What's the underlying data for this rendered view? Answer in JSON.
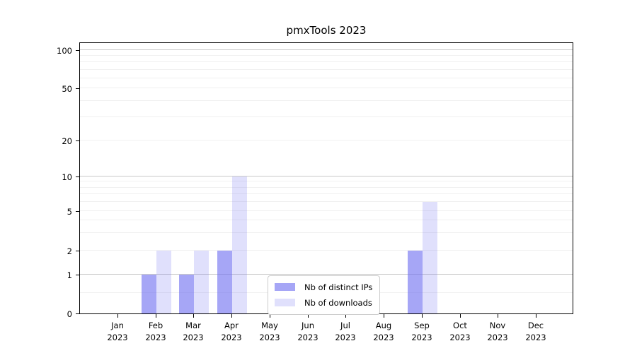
{
  "title": "pmxTools 2023",
  "colors": {
    "bar_base": "#7070f0",
    "distinct_ips_fill": "rgba(112,112,240,0.62)",
    "downloads_fill": "rgba(112,112,240,0.22)",
    "major_grid": "#c9c9c9",
    "minor_grid": "#f0f0f0",
    "axis": "#000000",
    "legend_border": "#cccccc"
  },
  "chart_data": {
    "type": "bar",
    "title": "pmxTools 2023",
    "categories": [
      "Jan",
      "Feb",
      "Mar",
      "Apr",
      "May",
      "Jun",
      "Jul",
      "Aug",
      "Sep",
      "Oct",
      "Nov",
      "Dec"
    ],
    "x_sub_label": "2023",
    "series": [
      {
        "name": "Nb of distinct IPs",
        "color": "rgba(112,112,240,0.62)",
        "values": [
          0,
          1,
          1,
          2,
          0,
          0,
          0,
          0,
          2,
          0,
          0,
          0
        ]
      },
      {
        "name": "Nb of downloads",
        "color": "rgba(112,112,240,0.22)",
        "values": [
          0,
          2,
          2,
          10,
          0,
          0,
          0,
          0,
          6,
          0,
          0,
          0
        ]
      }
    ],
    "y_tick_values": [
      0,
      1,
      2,
      5,
      10,
      20,
      50,
      100
    ],
    "y_scale": "log-like",
    "xlabel": "",
    "ylabel": "",
    "grid": "horizontal",
    "legend_position": "inside-bottom-center"
  }
}
